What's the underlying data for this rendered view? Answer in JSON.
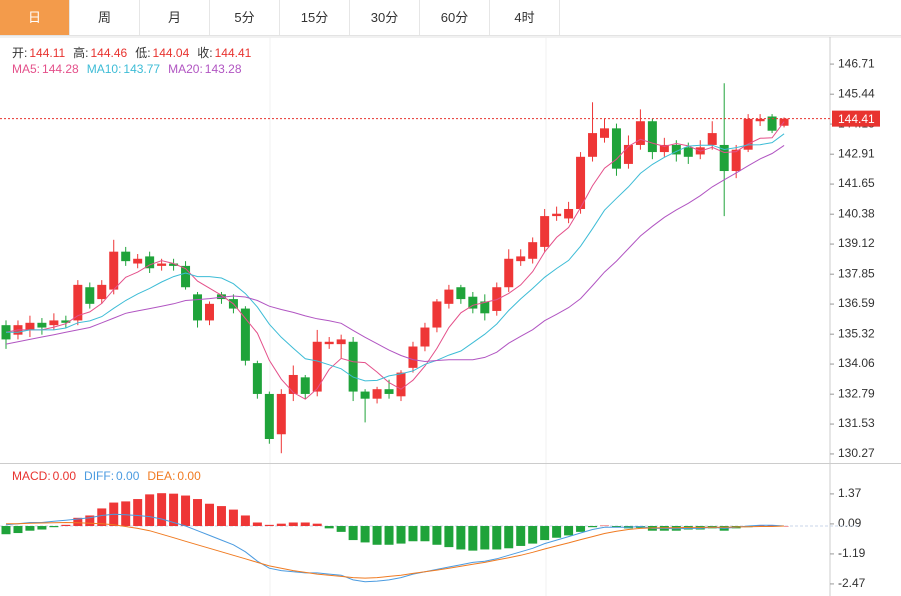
{
  "tabs": [
    "日",
    "周",
    "月",
    "5分",
    "15分",
    "30分",
    "60分",
    "4时"
  ],
  "chart_data": [
    {
      "type": "candlestick",
      "quote": [
        {
          "label": "开:",
          "value": 144.11
        },
        {
          "label": "高:",
          "value": 144.46
        },
        {
          "label": "低:",
          "value": 144.04
        },
        {
          "label": "收:",
          "value": 144.41
        }
      ],
      "quote_color": "#e8332f",
      "up_color": "#ee3636",
      "down_color": "#1fa33a",
      "open": [
        135.7,
        135.3,
        135.5,
        135.8,
        135.7,
        135.9,
        135.9,
        137.3,
        136.8,
        137.2,
        138.8,
        138.3,
        138.6,
        138.2,
        138.3,
        138.2,
        137.0,
        135.9,
        137.0,
        136.8,
        136.4,
        134.1,
        132.8,
        131.1,
        132.8,
        133.5,
        132.9,
        134.9,
        134.9,
        135.0,
        132.9,
        132.6,
        133.0,
        132.7,
        133.9,
        134.8,
        135.6,
        136.6,
        137.3,
        136.9,
        136.7,
        136.3,
        137.3,
        138.4,
        138.5,
        139.0,
        140.3,
        140.2,
        140.6,
        142.8,
        143.6,
        144.0,
        142.5,
        143.3,
        144.3,
        143.0,
        143.3,
        143.2,
        142.9,
        143.3,
        143.3,
        142.2,
        143.1,
        144.3,
        144.5,
        144.11
      ],
      "high": [
        135.9,
        135.9,
        136.1,
        136.0,
        136.2,
        136.1,
        137.6,
        137.5,
        137.6,
        139.3,
        139.0,
        138.7,
        138.8,
        138.5,
        138.5,
        138.4,
        137.1,
        136.7,
        137.1,
        137.0,
        136.5,
        134.2,
        132.9,
        133.0,
        134.0,
        133.6,
        135.5,
        135.2,
        135.3,
        135.2,
        133.0,
        133.1,
        133.4,
        133.8,
        135.0,
        135.8,
        136.8,
        137.4,
        137.4,
        137.1,
        137.0,
        137.5,
        138.9,
        138.9,
        139.4,
        140.6,
        140.7,
        140.9,
        143.0,
        145.1,
        144.4,
        144.2,
        143.7,
        144.8,
        144.4,
        143.6,
        143.5,
        143.4,
        143.5,
        144.3,
        145.9,
        143.3,
        144.6,
        144.6,
        144.6,
        144.46
      ],
      "low": [
        134.7,
        135.1,
        135.2,
        135.3,
        135.5,
        135.6,
        135.7,
        136.4,
        136.6,
        137.0,
        138.2,
        138.1,
        137.9,
        138.0,
        138.0,
        137.2,
        135.6,
        135.7,
        136.6,
        136.2,
        134.0,
        132.6,
        130.7,
        130.3,
        132.5,
        132.6,
        132.7,
        134.7,
        134.3,
        132.5,
        131.6,
        132.4,
        132.6,
        132.5,
        133.7,
        134.6,
        135.4,
        136.4,
        136.6,
        136.2,
        135.9,
        136.1,
        137.1,
        138.2,
        138.3,
        138.8,
        140.1,
        140.0,
        140.4,
        142.6,
        143.4,
        142.0,
        142.3,
        143.1,
        142.7,
        142.8,
        142.6,
        142.5,
        142.7,
        143.1,
        140.3,
        141.9,
        143.0,
        144.1,
        143.8,
        144.04
      ],
      "close": [
        135.1,
        135.7,
        135.8,
        135.6,
        135.9,
        135.8,
        137.4,
        136.6,
        137.4,
        138.8,
        138.4,
        138.5,
        138.1,
        138.3,
        138.2,
        137.3,
        135.9,
        136.6,
        136.8,
        136.4,
        134.2,
        132.8,
        130.9,
        132.8,
        133.6,
        132.8,
        135.0,
        135.0,
        135.1,
        132.9,
        132.6,
        133.0,
        132.8,
        133.7,
        134.8,
        135.6,
        136.7,
        137.2,
        136.8,
        136.4,
        136.2,
        137.3,
        138.5,
        138.6,
        139.2,
        140.3,
        140.4,
        140.6,
        142.8,
        143.8,
        144.0,
        142.3,
        143.3,
        144.3,
        143.0,
        143.3,
        142.9,
        142.8,
        143.2,
        143.8,
        142.2,
        143.1,
        144.4,
        144.4,
        143.9,
        144.41
      ],
      "series": [
        {
          "name": "MA5:",
          "latest": 144.28,
          "color": "#e4508a",
          "values": [
            135.4,
            135.5,
            135.5,
            135.5,
            135.62,
            135.76,
            136.1,
            136.26,
            136.62,
            137.2,
            137.72,
            137.94,
            138.24,
            138.42,
            138.3,
            138.08,
            137.56,
            137.26,
            136.96,
            136.6,
            135.98,
            135.36,
            134.22,
            133.42,
            132.86,
            132.58,
            133.02,
            133.84,
            134.3,
            134.16,
            134.12,
            133.72,
            133.28,
            133.0,
            133.38,
            133.98,
            134.72,
            135.6,
            136.22,
            136.54,
            136.66,
            136.78,
            137.04,
            137.4,
            137.96,
            138.78,
            139.4,
            139.82,
            140.66,
            141.58,
            142.32,
            142.7,
            143.24,
            143.54,
            143.38,
            143.24,
            143.36,
            143.26,
            143.04,
            143.2,
            142.98,
            143.02,
            143.34,
            143.58,
            143.6,
            144.28
          ]
        },
        {
          "name": "MA10:",
          "latest": 143.77,
          "color": "#3dbcd6",
          "values": [
            135.4,
            135.4,
            135.5,
            135.5,
            135.5,
            135.58,
            135.8,
            135.88,
            136.06,
            136.41,
            136.74,
            137.02,
            137.25,
            137.52,
            137.75,
            137.9,
            137.75,
            137.75,
            137.69,
            137.45,
            137.03,
            136.46,
            135.74,
            135.19,
            134.73,
            134.28,
            134.19,
            134.03,
            133.86,
            133.51,
            133.35,
            133.37,
            133.56,
            133.65,
            133.77,
            134.05,
            134.22,
            134.44,
            134.61,
            134.96,
            135.32,
            135.75,
            136.32,
            136.81,
            137.25,
            137.72,
            138.09,
            138.43,
            139.03,
            139.77,
            140.55,
            141.05,
            141.53,
            142.1,
            142.48,
            142.78,
            143.03,
            143.25,
            143.29,
            143.29,
            143.11,
            143.19,
            143.3,
            143.31,
            143.4,
            143.77
          ]
        },
        {
          "name": "MA20:",
          "latest": 143.28,
          "color": "#b155c2",
          "values": [
            134.9,
            135.0,
            135.1,
            135.2,
            135.3,
            135.4,
            135.5,
            135.6,
            135.8,
            136.0,
            136.2,
            136.3,
            136.4,
            136.5,
            136.6,
            136.74,
            136.78,
            136.82,
            136.88,
            136.93,
            136.89,
            136.74,
            136.5,
            136.36,
            136.24,
            136.09,
            135.97,
            135.89,
            135.78,
            135.48,
            135.19,
            134.92,
            134.65,
            134.42,
            134.25,
            134.17,
            134.21,
            134.24,
            134.24,
            134.24,
            134.34,
            134.56,
            134.94,
            135.23,
            135.51,
            135.89,
            136.16,
            136.44,
            136.82,
            137.37,
            137.94,
            138.4,
            138.93,
            139.46,
            139.87,
            140.25,
            140.56,
            140.84,
            141.16,
            141.53,
            141.83,
            142.12,
            142.42,
            142.71,
            142.94,
            143.28
          ]
        }
      ],
      "ylim": [
        129.93,
        147.81
      ],
      "yticks": [
        146.71,
        145.44,
        144.18,
        142.91,
        141.65,
        140.38,
        139.12,
        137.85,
        136.59,
        135.32,
        134.06,
        132.79,
        131.53,
        130.27
      ],
      "last_price": 144.41,
      "last_price_color": "#e8332f"
    },
    {
      "type": "macd",
      "up_color": "#ee3636",
      "down_color": "#1fa33a",
      "series": [
        {
          "name": "MACD:",
          "latest": "0.00",
          "color": "#e8332f",
          "values": [
            -0.35,
            -0.3,
            -0.2,
            -0.15,
            -0.05,
            0.05,
            0.35,
            0.45,
            0.75,
            1.0,
            1.05,
            1.15,
            1.35,
            1.4,
            1.38,
            1.3,
            1.15,
            0.95,
            0.85,
            0.7,
            0.45,
            0.15,
            0.05,
            0.1,
            0.15,
            0.15,
            0.1,
            -0.1,
            -0.25,
            -0.6,
            -0.7,
            -0.8,
            -0.8,
            -0.75,
            -0.65,
            -0.65,
            -0.8,
            -0.9,
            -1.0,
            -1.05,
            -1.0,
            -1.0,
            -0.95,
            -0.85,
            -0.75,
            -0.6,
            -0.5,
            -0.4,
            -0.25,
            -0.05,
            0.02,
            -0.05,
            -0.1,
            -0.08,
            -0.2,
            -0.2,
            -0.2,
            -0.15,
            -0.15,
            -0.1,
            -0.2,
            -0.1,
            -0.05,
            0.03,
            0.03,
            0.0
          ]
        },
        {
          "name": "DIFF:",
          "latest": "0.00",
          "color": "#4b9be0",
          "values": [
            0.05,
            0.1,
            0.15,
            0.15,
            0.2,
            0.25,
            0.3,
            0.35,
            0.45,
            0.5,
            0.48,
            0.45,
            0.4,
            0.3,
            0.15,
            0.0,
            -0.2,
            -0.4,
            -0.6,
            -0.8,
            -1.1,
            -1.5,
            -1.8,
            -1.9,
            -1.95,
            -2.0,
            -2.0,
            -2.05,
            -2.1,
            -2.3,
            -2.38,
            -2.35,
            -2.3,
            -2.2,
            -2.05,
            -1.95,
            -1.85,
            -1.75,
            -1.65,
            -1.55,
            -1.5,
            -1.4,
            -1.25,
            -1.1,
            -0.95,
            -0.75,
            -0.6,
            -0.45,
            -0.3,
            -0.15,
            -0.05,
            -0.05,
            -0.05,
            -0.02,
            -0.1,
            -0.1,
            -0.12,
            -0.1,
            -0.1,
            -0.05,
            -0.1,
            -0.05,
            0.0,
            0.03,
            0.03,
            0.0
          ]
        },
        {
          "name": "DEA:",
          "latest": "0.00",
          "color": "#f07b22",
          "values": [
            0.1,
            0.1,
            0.12,
            0.13,
            0.14,
            0.15,
            0.14,
            0.12,
            0.1,
            0.05,
            -0.02,
            -0.1,
            -0.2,
            -0.35,
            -0.5,
            -0.65,
            -0.8,
            -0.95,
            -1.1,
            -1.25,
            -1.4,
            -1.55,
            -1.7,
            -1.8,
            -1.9,
            -1.98,
            -2.05,
            -2.1,
            -2.15,
            -2.2,
            -2.22,
            -2.2,
            -2.15,
            -2.1,
            -2.02,
            -1.95,
            -1.88,
            -1.8,
            -1.72,
            -1.63,
            -1.55,
            -1.45,
            -1.35,
            -1.25,
            -1.12,
            -0.98,
            -0.85,
            -0.72,
            -0.58,
            -0.45,
            -0.32,
            -0.22,
            -0.15,
            -0.1,
            -0.08,
            -0.07,
            -0.07,
            -0.06,
            -0.06,
            -0.05,
            -0.05,
            -0.04,
            -0.03,
            -0.02,
            -0.02,
            0.0
          ]
        }
      ],
      "ylim": [
        -2.9,
        2.56
      ],
      "yticks": [
        1.37,
        0.09,
        -1.19,
        -2.47
      ]
    }
  ]
}
